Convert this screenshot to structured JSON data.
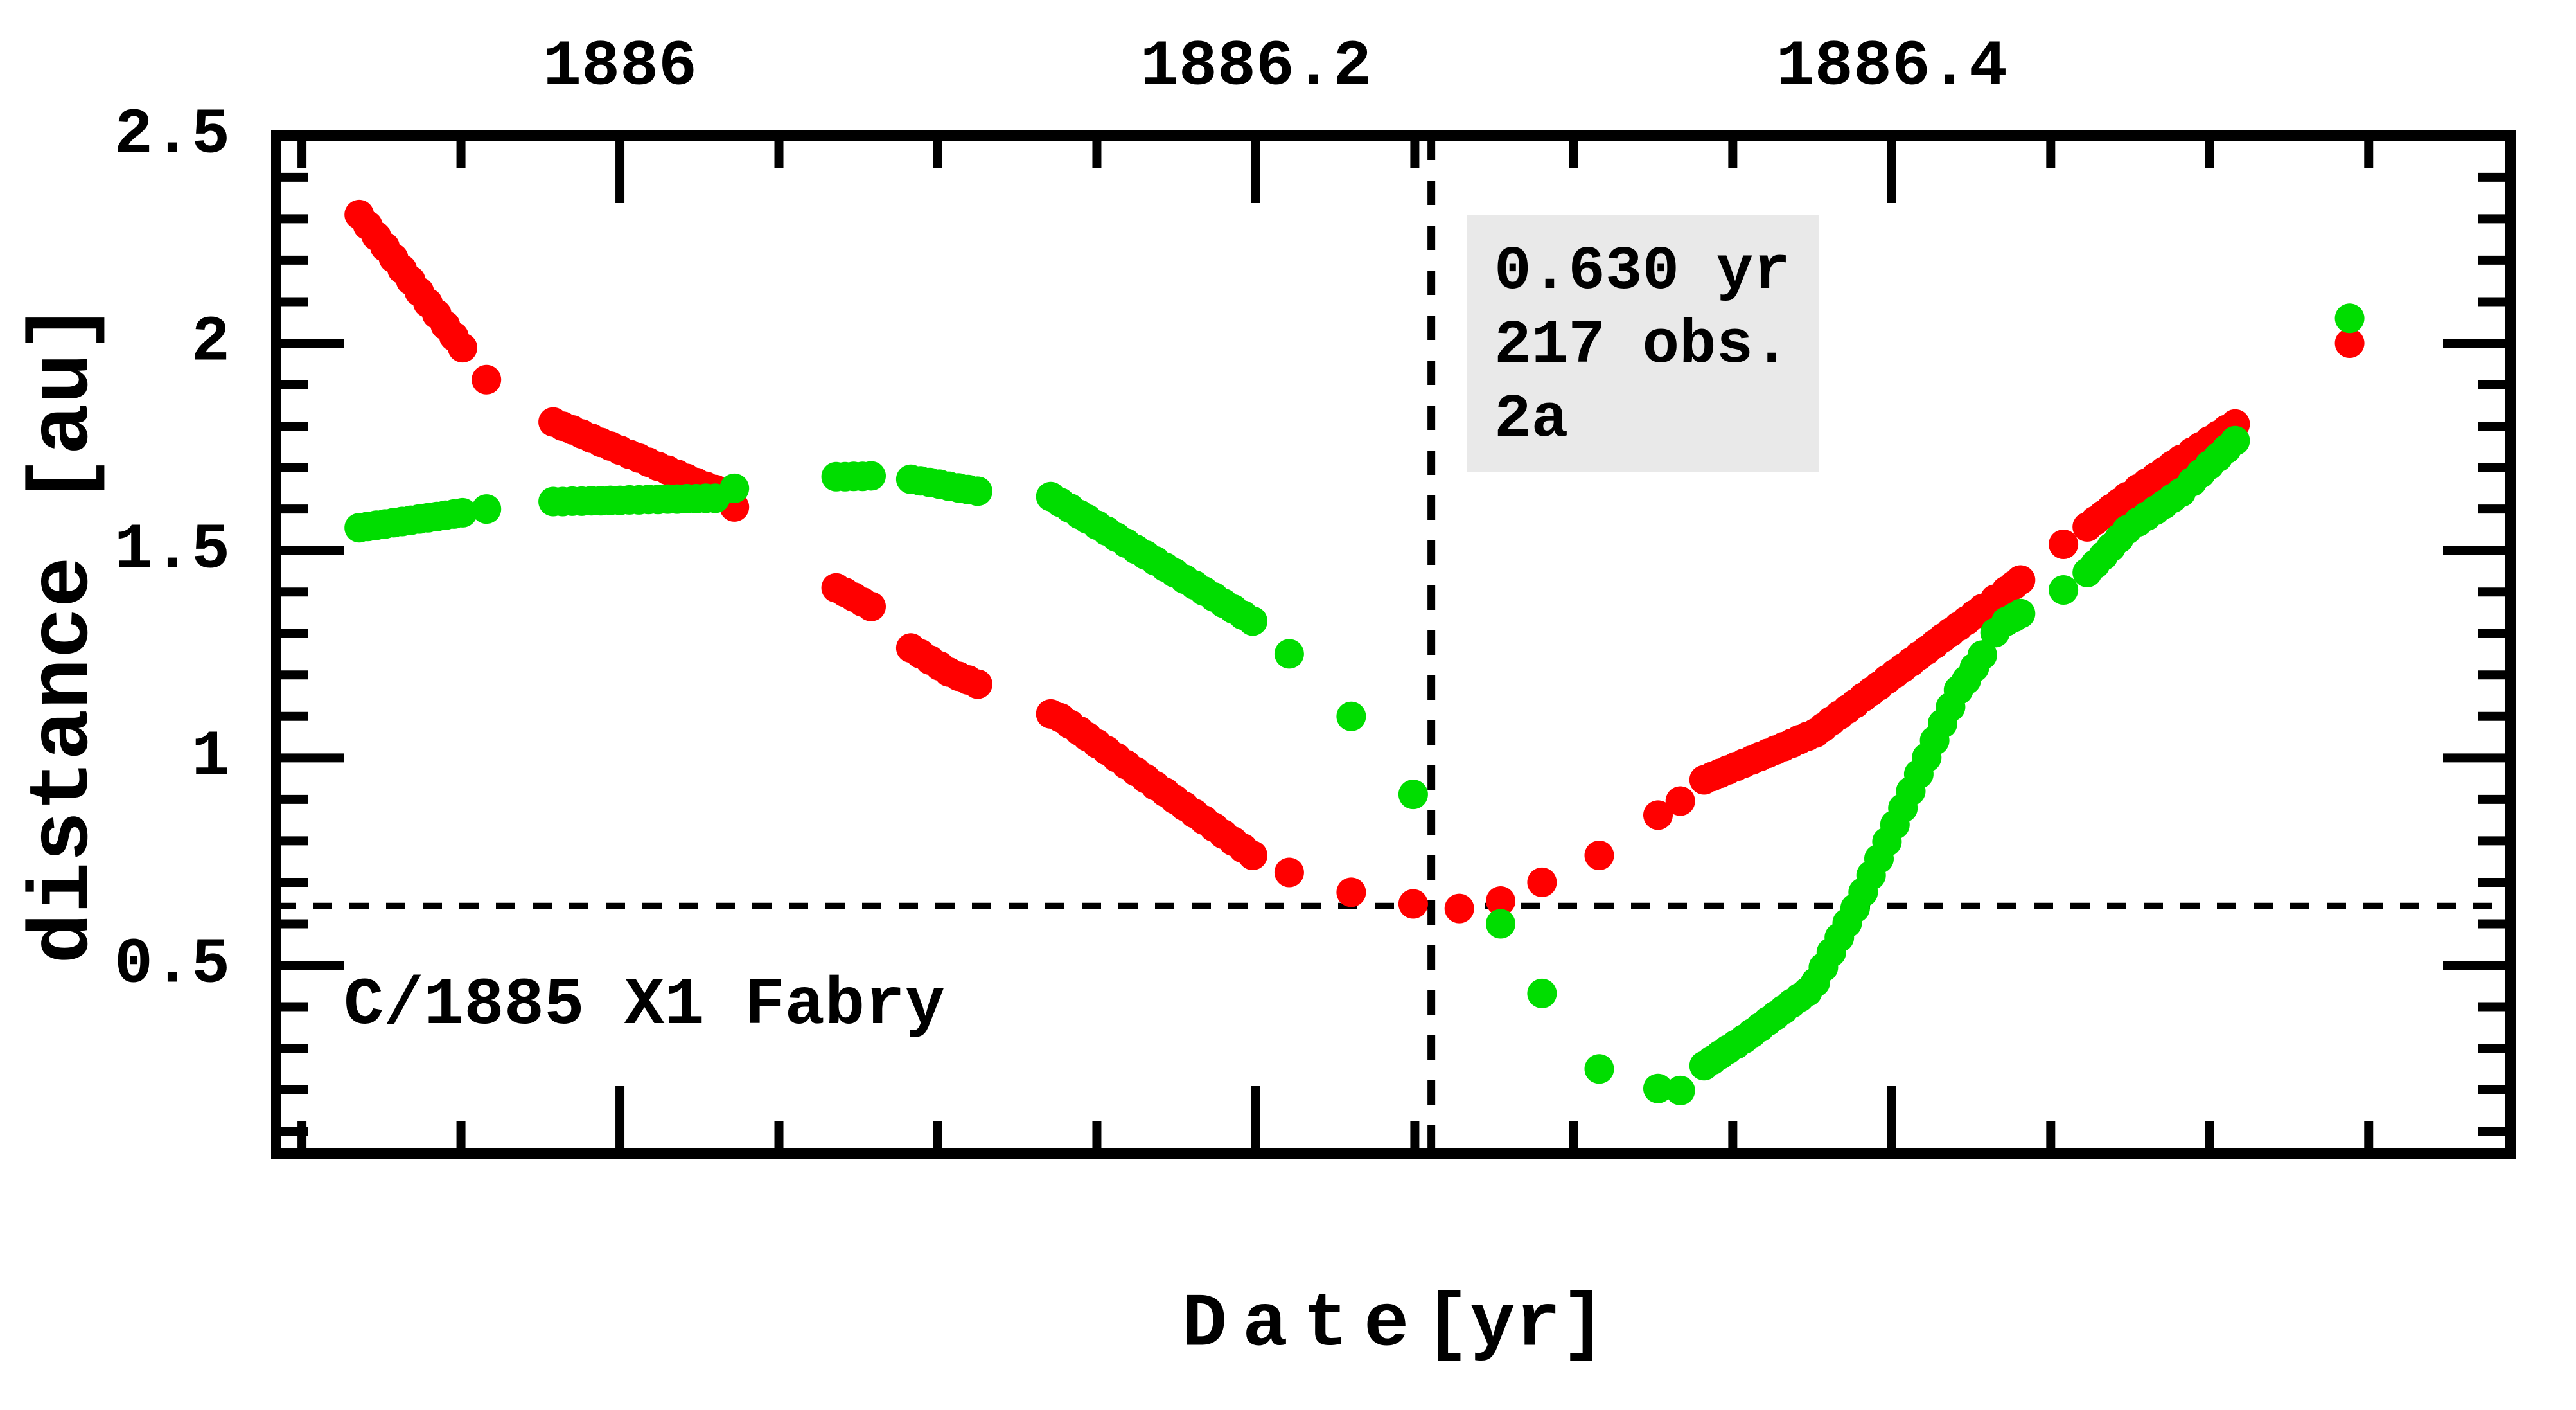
{
  "chart_data": {
    "type": "scatter",
    "xlabel": "D a t e [yr]",
    "ylabel": "distance [au]",
    "comet_label": "C/1885 X1 Fabry",
    "info_box": {
      "lines": [
        "0.630 yr",
        "217 obs.",
        "2a"
      ],
      "bg_color": "#e9e9e9"
    },
    "xlim": [
      1885.8919,
      1886.5946
    ],
    "ylim": [
      0.046,
      2.5005
    ],
    "x_major_ticks": [
      {
        "value": 1886.0,
        "label": "1886"
      },
      {
        "value": 1886.2,
        "label": "1886.2"
      },
      {
        "value": 1886.4,
        "label": "1886.4"
      }
    ],
    "x_minor_step": 0.05,
    "y_major_ticks": [
      {
        "value": 2.5,
        "label": "2.5"
      },
      {
        "value": 2.0,
        "label": "2"
      },
      {
        "value": 1.5,
        "label": "1.5"
      },
      {
        "value": 1.0,
        "label": "1"
      },
      {
        "value": 0.5,
        "label": "0.5"
      }
    ],
    "y_minor_step": 0.1,
    "dashed_h_value": 0.643,
    "dashed_v_value": 1886.2552,
    "grid": false,
    "legend": "none",
    "colors": {
      "red": "#ff0000",
      "green": "#00dd00",
      "axis": "#000000"
    },
    "series": [
      {
        "name": "red",
        "color": "#ff0000",
        "points": [
          [
            1885.918,
            2.31
          ],
          [
            1885.9207,
            2.284
          ],
          [
            1885.9234,
            2.258
          ],
          [
            1885.9261,
            2.232
          ],
          [
            1885.9288,
            2.205
          ],
          [
            1885.9315,
            2.178
          ],
          [
            1885.9342,
            2.151
          ],
          [
            1885.9369,
            2.124
          ],
          [
            1885.9396,
            2.097
          ],
          [
            1885.9424,
            2.07
          ],
          [
            1885.9451,
            2.043
          ],
          [
            1885.9478,
            2.016
          ],
          [
            1885.9505,
            1.989
          ],
          [
            1885.958,
            1.912
          ],
          [
            1885.979,
            1.81
          ],
          [
            1885.982,
            1.8
          ],
          [
            1885.985,
            1.791
          ],
          [
            1885.988,
            1.781
          ],
          [
            1885.991,
            1.771
          ],
          [
            1885.994,
            1.761
          ],
          [
            1885.997,
            1.752
          ],
          [
            1886.0,
            1.742
          ],
          [
            1886.003,
            1.732
          ],
          [
            1886.006,
            1.723
          ],
          [
            1886.009,
            1.713
          ],
          [
            1886.012,
            1.703
          ],
          [
            1886.015,
            1.694
          ],
          [
            1886.018,
            1.684
          ],
          [
            1886.021,
            1.674
          ],
          [
            1886.024,
            1.664
          ],
          [
            1886.027,
            1.655
          ],
          [
            1886.03,
            1.647
          ],
          [
            1886.036,
            1.605
          ],
          [
            1886.068,
            1.41
          ],
          [
            1886.0708,
            1.399
          ],
          [
            1886.0735,
            1.388
          ],
          [
            1886.0763,
            1.376
          ],
          [
            1886.079,
            1.365
          ],
          [
            1886.0915,
            1.265
          ],
          [
            1886.0945,
            1.251
          ],
          [
            1886.0975,
            1.236
          ],
          [
            1886.1005,
            1.222
          ],
          [
            1886.1035,
            1.207
          ],
          [
            1886.1065,
            1.197
          ],
          [
            1886.1095,
            1.188
          ],
          [
            1886.1125,
            1.178
          ],
          [
            1886.1355,
            1.106
          ],
          [
            1886.1385,
            1.097
          ],
          [
            1886.1415,
            1.081
          ],
          [
            1886.1445,
            1.065
          ],
          [
            1886.147,
            1.051
          ],
          [
            1886.1501,
            1.034
          ],
          [
            1886.1531,
            1.018
          ],
          [
            1886.1562,
            1.001
          ],
          [
            1886.1592,
            0.984
          ],
          [
            1886.1623,
            0.967
          ],
          [
            1886.1654,
            0.95
          ],
          [
            1886.1684,
            0.933
          ],
          [
            1886.1715,
            0.917
          ],
          [
            1886.1745,
            0.9
          ],
          [
            1886.1776,
            0.883
          ],
          [
            1886.1807,
            0.866
          ],
          [
            1886.1837,
            0.85
          ],
          [
            1886.1868,
            0.833
          ],
          [
            1886.1898,
            0.816
          ],
          [
            1886.1929,
            0.799
          ],
          [
            1886.196,
            0.782
          ],
          [
            1886.199,
            0.765
          ],
          [
            1886.2105,
            0.724
          ],
          [
            1886.23,
            0.676
          ],
          [
            1886.2495,
            0.648
          ],
          [
            1886.264,
            0.637
          ],
          [
            1886.277,
            0.655
          ],
          [
            1886.29,
            0.7
          ],
          [
            1886.308,
            0.765
          ],
          [
            1886.3265,
            0.862
          ],
          [
            1886.3335,
            0.896
          ],
          [
            1886.341,
            0.947
          ],
          [
            1886.3435,
            0.955
          ],
          [
            1886.346,
            0.963
          ],
          [
            1886.3485,
            0.971
          ],
          [
            1886.351,
            0.979
          ],
          [
            1886.3535,
            0.987
          ],
          [
            1886.356,
            0.995
          ],
          [
            1886.3585,
            1.003
          ],
          [
            1886.361,
            1.011
          ],
          [
            1886.3635,
            1.019
          ],
          [
            1886.366,
            1.027
          ],
          [
            1886.3685,
            1.035
          ],
          [
            1886.371,
            1.044
          ],
          [
            1886.3735,
            1.052
          ],
          [
            1886.376,
            1.06
          ],
          [
            1886.3785,
            1.074
          ],
          [
            1886.381,
            1.089
          ],
          [
            1886.3835,
            1.103
          ],
          [
            1886.386,
            1.117
          ],
          [
            1886.3885,
            1.131
          ],
          [
            1886.391,
            1.146
          ],
          [
            1886.3935,
            1.16
          ],
          [
            1886.396,
            1.174
          ],
          [
            1886.3985,
            1.189
          ],
          [
            1886.401,
            1.203
          ],
          [
            1886.4035,
            1.217
          ],
          [
            1886.406,
            1.231
          ],
          [
            1886.4085,
            1.246
          ],
          [
            1886.411,
            1.26
          ],
          [
            1886.4135,
            1.274
          ],
          [
            1886.416,
            1.289
          ],
          [
            1886.4185,
            1.303
          ],
          [
            1886.421,
            1.317
          ],
          [
            1886.4235,
            1.331
          ],
          [
            1886.426,
            1.346
          ],
          [
            1886.4285,
            1.36
          ],
          [
            1886.4325,
            1.383
          ],
          [
            1886.436,
            1.403
          ],
          [
            1886.4385,
            1.417
          ],
          [
            1886.4405,
            1.429
          ],
          [
            1886.454,
            1.515
          ],
          [
            1886.4615,
            1.557
          ],
          [
            1886.464,
            1.572
          ],
          [
            1886.4665,
            1.586
          ],
          [
            1886.469,
            1.601
          ],
          [
            1886.4715,
            1.615
          ],
          [
            1886.474,
            1.63
          ],
          [
            1886.4775,
            1.649
          ],
          [
            1886.4802,
            1.663
          ],
          [
            1886.4829,
            1.677
          ],
          [
            1886.4856,
            1.691
          ],
          [
            1886.4883,
            1.706
          ],
          [
            1886.491,
            1.72
          ],
          [
            1886.4945,
            1.738
          ],
          [
            1886.4972,
            1.751
          ],
          [
            1886.4999,
            1.765
          ],
          [
            1886.5026,
            1.778
          ],
          [
            1886.5053,
            1.792
          ],
          [
            1886.508,
            1.805
          ],
          [
            1886.544,
            2.0
          ]
        ]
      },
      {
        "name": "green",
        "color": "#00dd00",
        "points": [
          [
            1885.918,
            1.555
          ],
          [
            1885.9207,
            1.558
          ],
          [
            1885.9234,
            1.561
          ],
          [
            1885.9261,
            1.564
          ],
          [
            1885.9288,
            1.567
          ],
          [
            1885.9315,
            1.57
          ],
          [
            1885.9342,
            1.573
          ],
          [
            1885.9369,
            1.576
          ],
          [
            1885.9396,
            1.579
          ],
          [
            1885.9424,
            1.582
          ],
          [
            1885.9451,
            1.585
          ],
          [
            1885.9478,
            1.588
          ],
          [
            1885.9505,
            1.591
          ],
          [
            1885.958,
            1.6
          ],
          [
            1885.979,
            1.618
          ],
          [
            1885.982,
            1.618
          ],
          [
            1885.985,
            1.619
          ],
          [
            1885.988,
            1.619
          ],
          [
            1885.991,
            1.62
          ],
          [
            1885.994,
            1.62
          ],
          [
            1885.997,
            1.621
          ],
          [
            1886.0,
            1.621
          ],
          [
            1886.003,
            1.622
          ],
          [
            1886.006,
            1.622
          ],
          [
            1886.009,
            1.623
          ],
          [
            1886.012,
            1.623
          ],
          [
            1886.015,
            1.624
          ],
          [
            1886.018,
            1.624
          ],
          [
            1886.021,
            1.625
          ],
          [
            1886.024,
            1.625
          ],
          [
            1886.027,
            1.626
          ],
          [
            1886.03,
            1.626
          ],
          [
            1886.036,
            1.65
          ],
          [
            1886.068,
            1.678
          ],
          [
            1886.0708,
            1.678
          ],
          [
            1886.0735,
            1.679
          ],
          [
            1886.0763,
            1.679
          ],
          [
            1886.079,
            1.68
          ],
          [
            1886.0915,
            1.672
          ],
          [
            1886.0945,
            1.668
          ],
          [
            1886.0975,
            1.664
          ],
          [
            1886.1005,
            1.66
          ],
          [
            1886.1035,
            1.655
          ],
          [
            1886.1065,
            1.651
          ],
          [
            1886.1095,
            1.647
          ],
          [
            1886.1125,
            1.643
          ],
          [
            1886.1355,
            1.63
          ],
          [
            1886.1385,
            1.616
          ],
          [
            1886.1415,
            1.602
          ],
          [
            1886.1445,
            1.587
          ],
          [
            1886.147,
            1.576
          ],
          [
            1886.1501,
            1.561
          ],
          [
            1886.1531,
            1.547
          ],
          [
            1886.1562,
            1.532
          ],
          [
            1886.1592,
            1.518
          ],
          [
            1886.1623,
            1.503
          ],
          [
            1886.1654,
            1.489
          ],
          [
            1886.1684,
            1.475
          ],
          [
            1886.1715,
            1.46
          ],
          [
            1886.1745,
            1.446
          ],
          [
            1886.1776,
            1.431
          ],
          [
            1886.1807,
            1.417
          ],
          [
            1886.1837,
            1.402
          ],
          [
            1886.1868,
            1.388
          ],
          [
            1886.1898,
            1.373
          ],
          [
            1886.1929,
            1.359
          ],
          [
            1886.196,
            1.344
          ],
          [
            1886.199,
            1.33
          ],
          [
            1886.2105,
            1.251
          ],
          [
            1886.23,
            1.1
          ],
          [
            1886.2495,
            0.912
          ],
          [
            1886.277,
            0.6
          ],
          [
            1886.29,
            0.432
          ],
          [
            1886.308,
            0.25
          ],
          [
            1886.3265,
            0.203
          ],
          [
            1886.3335,
            0.198
          ],
          [
            1886.341,
            0.258
          ],
          [
            1886.3435,
            0.271
          ],
          [
            1886.346,
            0.284
          ],
          [
            1886.3485,
            0.297
          ],
          [
            1886.351,
            0.309
          ],
          [
            1886.3535,
            0.322
          ],
          [
            1886.356,
            0.336
          ],
          [
            1886.3585,
            0.35
          ],
          [
            1886.361,
            0.365
          ],
          [
            1886.3635,
            0.379
          ],
          [
            1886.366,
            0.393
          ],
          [
            1886.3685,
            0.408
          ],
          [
            1886.371,
            0.422
          ],
          [
            1886.3735,
            0.436
          ],
          [
            1886.376,
            0.459
          ],
          [
            1886.3785,
            0.495
          ],
          [
            1886.381,
            0.531
          ],
          [
            1886.3835,
            0.567
          ],
          [
            1886.386,
            0.602
          ],
          [
            1886.3885,
            0.638
          ],
          [
            1886.391,
            0.676
          ],
          [
            1886.3935,
            0.717
          ],
          [
            1886.396,
            0.757
          ],
          [
            1886.3985,
            0.798
          ],
          [
            1886.401,
            0.839
          ],
          [
            1886.4035,
            0.879
          ],
          [
            1886.406,
            0.92
          ],
          [
            1886.4085,
            0.961
          ],
          [
            1886.411,
            1.001
          ],
          [
            1886.4135,
            1.042
          ],
          [
            1886.416,
            1.083
          ],
          [
            1886.4185,
            1.123
          ],
          [
            1886.421,
            1.164
          ],
          [
            1886.4235,
            1.188
          ],
          [
            1886.426,
            1.218
          ],
          [
            1886.4285,
            1.248
          ],
          [
            1886.4325,
            1.302
          ],
          [
            1886.436,
            1.329
          ],
          [
            1886.4385,
            1.339
          ],
          [
            1886.4405,
            1.348
          ],
          [
            1886.454,
            1.405
          ],
          [
            1886.4615,
            1.447
          ],
          [
            1886.464,
            1.467
          ],
          [
            1886.4665,
            1.487
          ],
          [
            1886.469,
            1.508
          ],
          [
            1886.4715,
            1.529
          ],
          [
            1886.474,
            1.55
          ],
          [
            1886.4775,
            1.569
          ],
          [
            1886.4802,
            1.583
          ],
          [
            1886.4829,
            1.597
          ],
          [
            1886.4856,
            1.611
          ],
          [
            1886.4883,
            1.626
          ],
          [
            1886.491,
            1.64
          ],
          [
            1886.4945,
            1.666
          ],
          [
            1886.4972,
            1.686
          ],
          [
            1886.4999,
            1.706
          ],
          [
            1886.5026,
            1.725
          ],
          [
            1886.5053,
            1.745
          ],
          [
            1886.508,
            1.765
          ],
          [
            1886.544,
            2.06
          ]
        ]
      }
    ]
  }
}
